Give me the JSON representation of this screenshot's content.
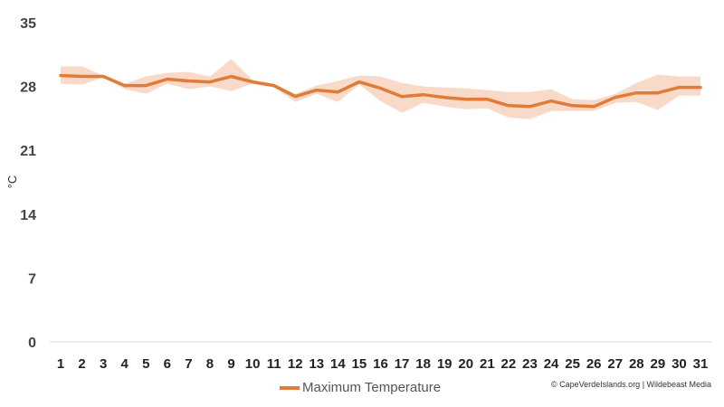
{
  "chart_data": {
    "type": "line",
    "title": "",
    "xlabel": "",
    "ylabel": "°C",
    "ylim": [
      0,
      35
    ],
    "yticks": [
      0,
      7,
      14,
      21,
      28,
      35
    ],
    "categories": [
      "1",
      "2",
      "3",
      "4",
      "5",
      "6",
      "7",
      "8",
      "9",
      "10",
      "11",
      "12",
      "13",
      "14",
      "15",
      "16",
      "17",
      "18",
      "19",
      "20",
      "21",
      "22",
      "23",
      "24",
      "25",
      "26",
      "27",
      "28",
      "29",
      "30",
      "31"
    ],
    "grid": false,
    "legend_position": "bottom",
    "series": [
      {
        "name": "Maximum Temperature",
        "color": "#e07b39",
        "values": [
          29.2,
          29.1,
          29.1,
          28.1,
          28.1,
          28.8,
          28.6,
          28.5,
          29.1,
          28.5,
          28.1,
          26.9,
          27.6,
          27.4,
          28.5,
          27.8,
          26.9,
          27.1,
          26.8,
          26.6,
          26.6,
          25.9,
          25.8,
          26.4,
          25.9,
          25.8,
          26.8,
          27.3,
          27.3,
          27.9,
          27.9
        ],
        "range_low": [
          28.3,
          28.2,
          29.0,
          27.7,
          27.2,
          28.3,
          27.7,
          28.0,
          27.5,
          28.3,
          27.9,
          26.3,
          27.2,
          26.3,
          28.2,
          26.4,
          25.1,
          26.2,
          25.8,
          25.5,
          25.6,
          24.6,
          24.4,
          25.3,
          25.3,
          25.3,
          26.2,
          26.3,
          25.4,
          27.0,
          27.0
        ],
        "range_high": [
          30.2,
          30.2,
          29.2,
          28.3,
          29.1,
          29.5,
          29.6,
          29.1,
          31.0,
          28.7,
          28.3,
          27.2,
          28.1,
          28.6,
          29.2,
          29.1,
          28.4,
          28.0,
          27.9,
          27.8,
          27.6,
          27.4,
          27.4,
          27.7,
          26.6,
          26.5,
          27.2,
          28.4,
          29.3,
          29.1,
          29.1
        ],
        "range_color": "#f8d6c3"
      }
    ]
  },
  "credit": "© CapeVerdeIslands.org | Wildebeast Media"
}
